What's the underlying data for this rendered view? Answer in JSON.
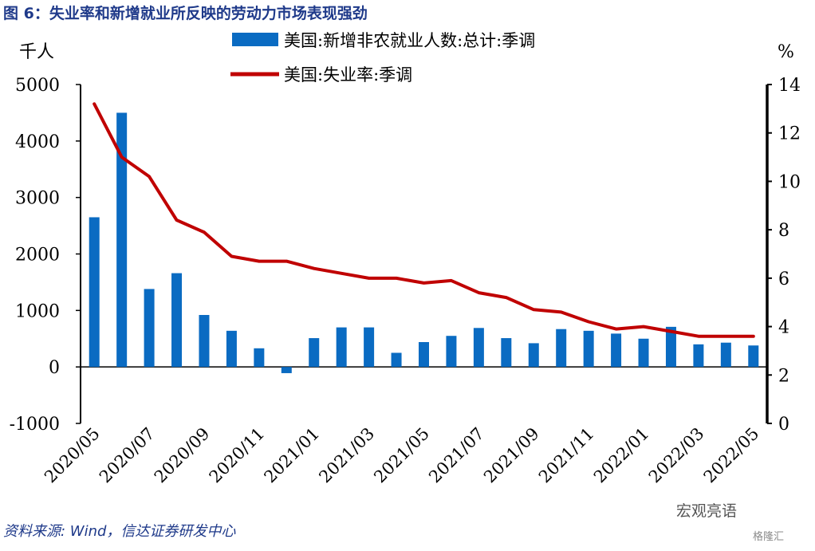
{
  "title": "图 6：失业率和新增就业所反映的劳动力市场表现强劲",
  "source": "资料来源: Wind，信达证券研发中心",
  "watermark": "宏观亮语",
  "watermark2": "格隆汇",
  "colors": {
    "bar": "#0a6bc2",
    "line": "#c00000",
    "title": "#1f3a8a"
  },
  "chart_data": {
    "type": "bar",
    "x": [
      "2020/05",
      "2020/06",
      "2020/07",
      "2020/08",
      "2020/09",
      "2020/10",
      "2020/11",
      "2020/12",
      "2021/01",
      "2021/02",
      "2021/03",
      "2021/04",
      "2021/05",
      "2021/06",
      "2021/07",
      "2021/08",
      "2021/09",
      "2021/10",
      "2021/11",
      "2021/12",
      "2022/01",
      "2022/02",
      "2022/03",
      "2022/04",
      "2022/05"
    ],
    "x_tick_labels": [
      "2020/05",
      "2020/07",
      "2020/09",
      "2020/11",
      "2021/01",
      "2021/03",
      "2021/05",
      "2021/07",
      "2021/09",
      "2021/11",
      "2022/01",
      "2022/03",
      "2022/05"
    ],
    "series": [
      {
        "name": "美国:新增非农就业人数:总计:季调",
        "type": "bar",
        "axis": "left",
        "values": [
          2650,
          4500,
          1380,
          1660,
          920,
          640,
          330,
          -110,
          510,
          700,
          700,
          250,
          440,
          550,
          690,
          510,
          420,
          670,
          640,
          590,
          500,
          710,
          400,
          430,
          380
        ]
      },
      {
        "name": "美国:失业率:季调",
        "type": "line",
        "axis": "right",
        "values": [
          13.2,
          11.0,
          10.2,
          8.4,
          7.9,
          6.9,
          6.7,
          6.7,
          6.4,
          6.2,
          6.0,
          6.0,
          5.8,
          5.9,
          5.4,
          5.2,
          4.7,
          4.6,
          4.2,
          3.9,
          4.0,
          3.8,
          3.6,
          3.6,
          3.6
        ]
      }
    ],
    "y_left": {
      "label": "千人",
      "min": -1000,
      "max": 5000,
      "ticks": [
        5000,
        4000,
        3000,
        2000,
        1000,
        0,
        -1000
      ]
    },
    "y_right": {
      "label": "%",
      "min": 0,
      "max": 14,
      "ticks": [
        14,
        12,
        10,
        8,
        6,
        4,
        2,
        0
      ]
    },
    "legend_position": "top"
  }
}
